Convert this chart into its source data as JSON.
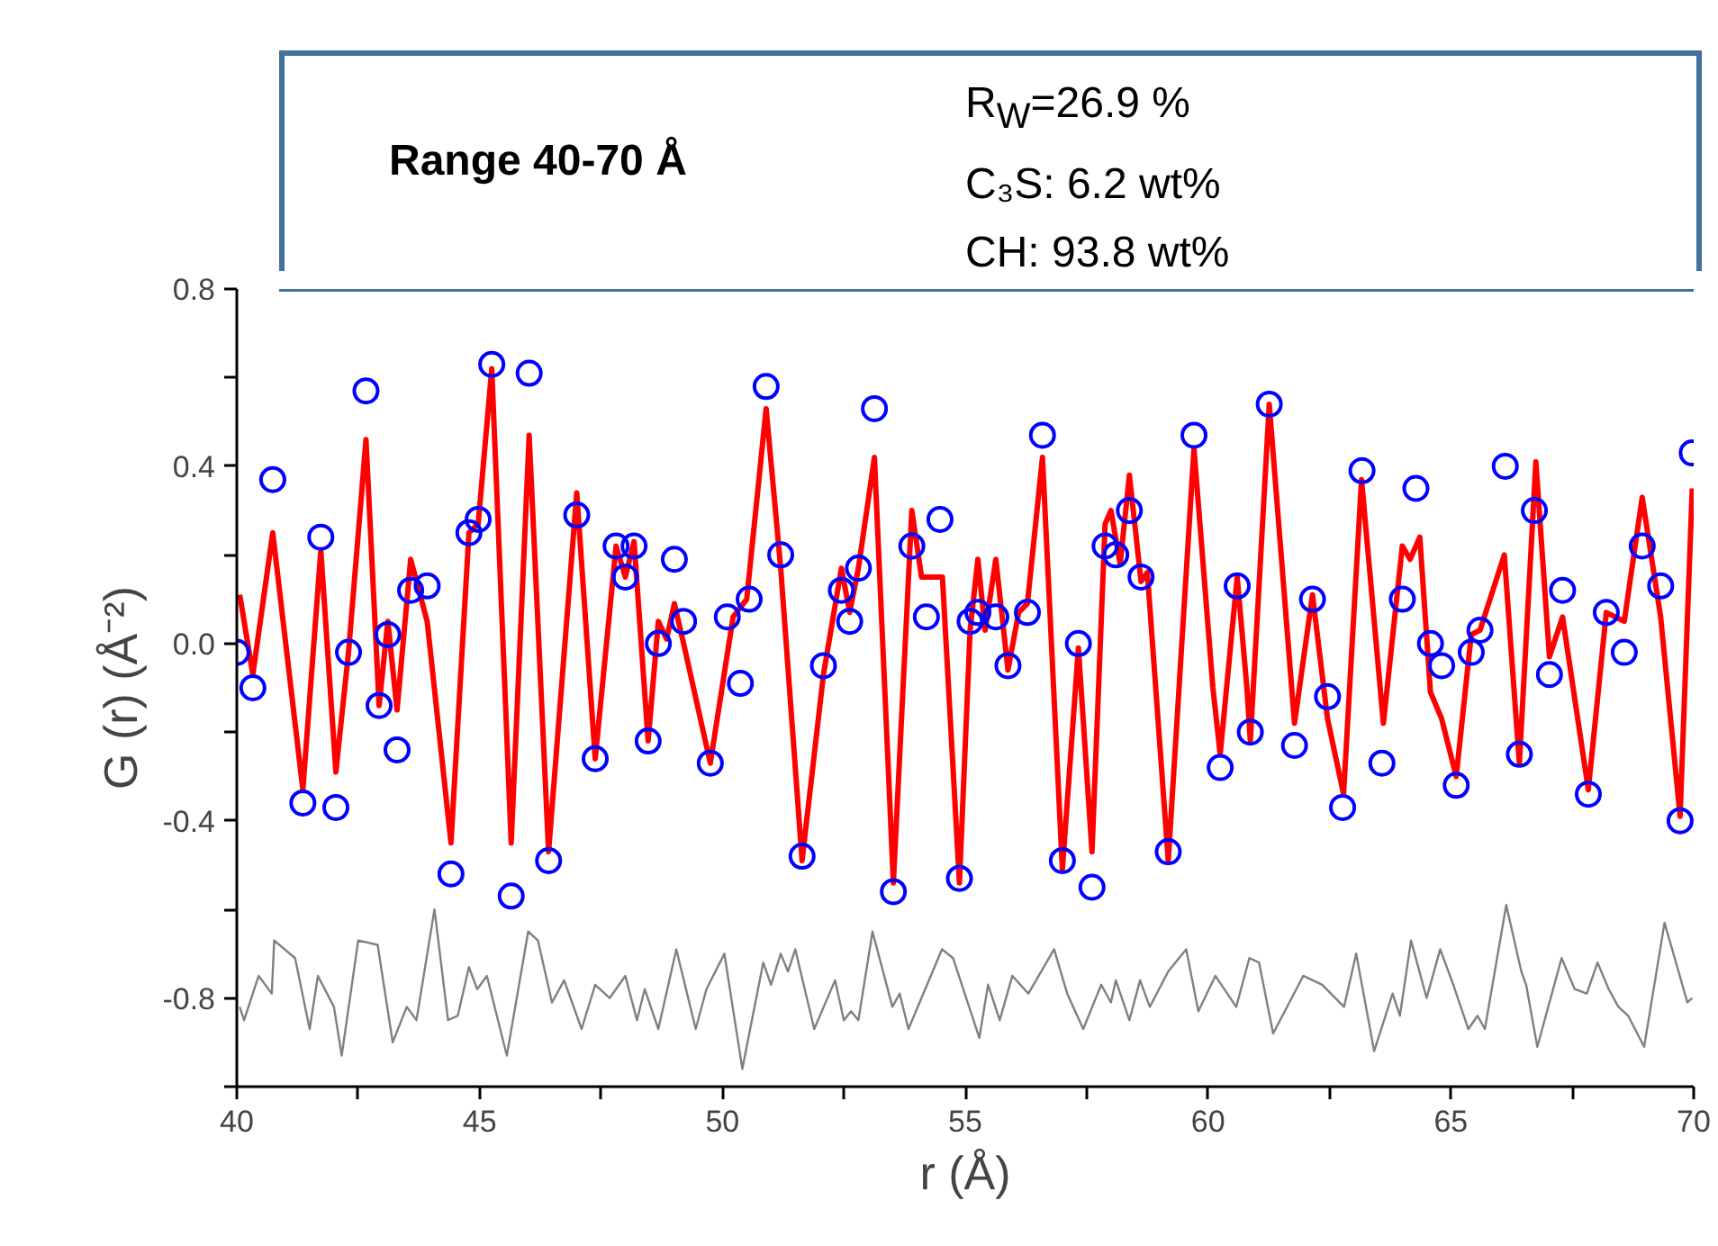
{
  "chart_data": {
    "type": "line",
    "xlabel": "r (Å)",
    "ylabel": "G (r) (Å⁻²)",
    "annotations": [
      "Range 40-70 Å",
      "R$_{W}$=26.9 %",
      "C₃S: 6.2 wt%",
      "CH: 93.8 wt%"
    ],
    "xlim": [
      40,
      70
    ],
    "ylim": [
      -1.0,
      0.8
    ],
    "xticks": [
      40,
      {
        "value": 42.5,
        "label": null
      },
      45,
      {
        "value": 47.5,
        "label": null
      },
      50,
      {
        "value": 52.5,
        "label": null
      },
      55,
      {
        "value": 57.5,
        "label": null
      },
      60,
      {
        "value": 62.5,
        "label": null
      },
      65,
      {
        "value": 67.5,
        "label": null
      },
      70
    ],
    "yticks": [
      {
        "value": -1.0,
        "label": null
      },
      -0.8,
      {
        "value": -0.6,
        "label": null
      },
      -0.4,
      {
        "value": -0.2,
        "label": null
      },
      {
        "value": 0,
        "label": "0.0"
      },
      {
        "value": 0.2,
        "label": null
      },
      0.4,
      {
        "value": 0.6,
        "label": null
      },
      0.8
    ],
    "grid": false,
    "series": [
      {
        "type": "scatter",
        "marker": "circle",
        "color": "#0000ff",
        "x": [
          40.0,
          40.33,
          40.74,
          41.36,
          41.73,
          42.04,
          42.3,
          42.66,
          42.93,
          43.11,
          43.3,
          43.58,
          43.92,
          44.41,
          44.78,
          44.97,
          45.25,
          45.65,
          46.02,
          46.42,
          47.0,
          47.38,
          47.81,
          48.0,
          48.18,
          48.47,
          48.68,
          49.01,
          49.2,
          49.75,
          50.1,
          50.37,
          50.55,
          50.9,
          51.2,
          51.64,
          52.08,
          52.45,
          52.62,
          52.8,
          53.13,
          53.52,
          53.9,
          54.2,
          54.48,
          54.88,
          55.1,
          55.26,
          55.63,
          55.88,
          56.28,
          56.59,
          57.0,
          57.33,
          57.61,
          57.88,
          58.1,
          58.38,
          58.62,
          59.18,
          59.71,
          60.25,
          60.6,
          60.87,
          61.26,
          61.78,
          62.15,
          62.46,
          62.77,
          63.17,
          63.58,
          64.0,
          64.28,
          64.58,
          64.81,
          65.11,
          65.42,
          65.6,
          66.12,
          66.41,
          66.72,
          67.03,
          67.3,
          67.83,
          68.2,
          68.57,
          68.94,
          69.32,
          69.72,
          69.97
        ],
        "values": [
          -0.02,
          -0.1,
          0.37,
          -0.36,
          0.24,
          -0.37,
          -0.02,
          0.57,
          -0.14,
          0.02,
          -0.24,
          0.12,
          0.13,
          -0.52,
          0.25,
          0.28,
          0.63,
          -0.57,
          0.61,
          -0.49,
          0.29,
          -0.26,
          0.22,
          0.15,
          0.22,
          -0.22,
          0.0,
          0.19,
          0.05,
          -0.27,
          0.06,
          -0.09,
          0.1,
          0.58,
          0.2,
          -0.48,
          -0.05,
          0.12,
          0.05,
          0.17,
          0.53,
          -0.56,
          0.22,
          0.06,
          0.28,
          -0.53,
          0.05,
          0.07,
          0.06,
          -0.05,
          0.07,
          0.47,
          -0.49,
          0.0,
          -0.55,
          0.22,
          0.2,
          0.3,
          0.15,
          -0.47,
          0.47,
          -0.28,
          0.13,
          -0.2,
          0.54,
          -0.23,
          0.1,
          -0.12,
          -0.37,
          0.39,
          -0.27,
          0.1,
          0.35,
          0.0,
          -0.05,
          -0.32,
          -0.02,
          0.03,
          0.4,
          -0.25,
          0.3,
          -0.07,
          0.12,
          -0.34,
          0.07,
          -0.02,
          0.22,
          0.13,
          -0.4,
          0.43
        ]
      },
      {
        "color": "#ff0000",
        "x": [
          40.06,
          40.33,
          40.74,
          41.36,
          41.73,
          42.04,
          42.3,
          42.66,
          42.93,
          43.11,
          43.3,
          43.58,
          43.92,
          44.41,
          44.78,
          44.97,
          45.25,
          45.65,
          46.02,
          46.42,
          47.0,
          47.38,
          47.81,
          48.0,
          48.18,
          48.47,
          48.68,
          48.85,
          49.01,
          49.2,
          49.75,
          50.22,
          50.5,
          50.9,
          51.2,
          51.64,
          52.08,
          52.45,
          52.62,
          52.8,
          53.13,
          53.52,
          53.9,
          54.1,
          54.53,
          54.88,
          55.1,
          55.26,
          55.41,
          55.63,
          55.88,
          56.1,
          56.28,
          56.59,
          57.0,
          57.33,
          57.61,
          57.88,
          58.0,
          58.19,
          58.38,
          58.62,
          58.75,
          59.18,
          59.71,
          60.1,
          60.25,
          60.6,
          60.8,
          60.87,
          61.26,
          61.78,
          62.15,
          62.46,
          62.79,
          63.16,
          63.61,
          64.0,
          64.16,
          64.36,
          64.58,
          64.81,
          65.11,
          65.42,
          65.6,
          66.1,
          66.41,
          66.75,
          67.03,
          67.3,
          67.83,
          68.2,
          68.57,
          68.94,
          69.32,
          69.72,
          69.97
        ],
        "values": [
          0.11,
          -0.07,
          0.25,
          -0.33,
          0.21,
          -0.29,
          -0.02,
          0.46,
          -0.14,
          0.05,
          -0.15,
          0.19,
          0.05,
          -0.45,
          0.25,
          0.27,
          0.62,
          -0.45,
          0.47,
          -0.47,
          0.34,
          -0.26,
          0.22,
          0.15,
          0.23,
          -0.22,
          0.05,
          0.01,
          0.09,
          0.0,
          -0.27,
          0.06,
          0.1,
          0.53,
          0.17,
          -0.49,
          -0.07,
          0.17,
          0.07,
          0.17,
          0.42,
          -0.54,
          0.3,
          0.15,
          0.15,
          -0.54,
          0.03,
          0.19,
          0.03,
          0.19,
          -0.06,
          0.07,
          0.09,
          0.42,
          -0.51,
          -0.01,
          -0.47,
          0.27,
          0.3,
          0.18,
          0.38,
          0.14,
          0.16,
          -0.49,
          0.44,
          -0.1,
          -0.25,
          0.15,
          -0.1,
          -0.22,
          0.54,
          -0.18,
          0.11,
          -0.17,
          -0.34,
          0.37,
          -0.18,
          0.22,
          0.19,
          0.24,
          -0.11,
          -0.17,
          -0.3,
          0.02,
          0.03,
          0.2,
          -0.27,
          0.41,
          -0.03,
          0.06,
          -0.33,
          0.07,
          0.05,
          0.33,
          0.06,
          -0.39,
          0.35
        ]
      },
      {
        "color": "#808080",
        "x": [
          40.06,
          40.15,
          40.45,
          40.72,
          40.77,
          41.2,
          41.5,
          41.67,
          42.0,
          42.16,
          42.5,
          42.9,
          43.21,
          43.5,
          43.7,
          44.07,
          44.35,
          44.55,
          44.78,
          44.95,
          45.15,
          45.56,
          46.0,
          46.2,
          46.49,
          46.74,
          47.1,
          47.38,
          47.68,
          48.0,
          48.24,
          48.4,
          48.68,
          49.05,
          49.45,
          49.67,
          50.04,
          50.41,
          50.84,
          51.0,
          51.2,
          51.35,
          51.5,
          51.89,
          52.32,
          52.5,
          52.65,
          52.8,
          53.09,
          53.5,
          53.65,
          53.83,
          54.52,
          54.75,
          55.29,
          55.47,
          55.71,
          55.97,
          56.3,
          56.83,
          57.1,
          57.43,
          57.8,
          58.0,
          58.1,
          58.38,
          58.6,
          58.8,
          59.18,
          59.55,
          59.8,
          60.15,
          60.58,
          60.85,
          61.05,
          61.34,
          61.96,
          62.35,
          62.8,
          63.05,
          63.42,
          63.8,
          63.95,
          64.18,
          64.5,
          64.78,
          65.05,
          65.36,
          65.55,
          65.7,
          66.14,
          66.45,
          66.55,
          66.78,
          67.28,
          67.55,
          67.8,
          68.02,
          68.25,
          68.45,
          68.65,
          68.98,
          69.4,
          69.87,
          69.97
        ],
        "values": [
          -0.82,
          -0.85,
          -0.75,
          -0.79,
          -0.67,
          -0.71,
          -0.87,
          -0.75,
          -0.82,
          -0.93,
          -0.67,
          -0.68,
          -0.9,
          -0.82,
          -0.85,
          -0.6,
          -0.85,
          -0.84,
          -0.73,
          -0.78,
          -0.75,
          -0.93,
          -0.65,
          -0.67,
          -0.81,
          -0.76,
          -0.87,
          -0.77,
          -0.8,
          -0.75,
          -0.85,
          -0.78,
          -0.87,
          -0.69,
          -0.87,
          -0.78,
          -0.7,
          -0.96,
          -0.72,
          -0.77,
          -0.7,
          -0.74,
          -0.69,
          -0.87,
          -0.76,
          -0.85,
          -0.83,
          -0.85,
          -0.65,
          -0.82,
          -0.79,
          -0.87,
          -0.69,
          -0.71,
          -0.89,
          -0.77,
          -0.85,
          -0.75,
          -0.79,
          -0.69,
          -0.79,
          -0.87,
          -0.77,
          -0.81,
          -0.76,
          -0.85,
          -0.76,
          -0.82,
          -0.74,
          -0.69,
          -0.83,
          -0.75,
          -0.82,
          -0.71,
          -0.72,
          -0.88,
          -0.75,
          -0.77,
          -0.82,
          -0.7,
          -0.92,
          -0.79,
          -0.84,
          -0.67,
          -0.8,
          -0.69,
          -0.77,
          -0.87,
          -0.84,
          -0.87,
          -0.59,
          -0.74,
          -0.77,
          -0.91,
          -0.71,
          -0.78,
          -0.79,
          -0.72,
          -0.78,
          -0.82,
          -0.84,
          -0.91,
          -0.63,
          -0.81,
          -0.8
        ]
      }
    ]
  }
}
